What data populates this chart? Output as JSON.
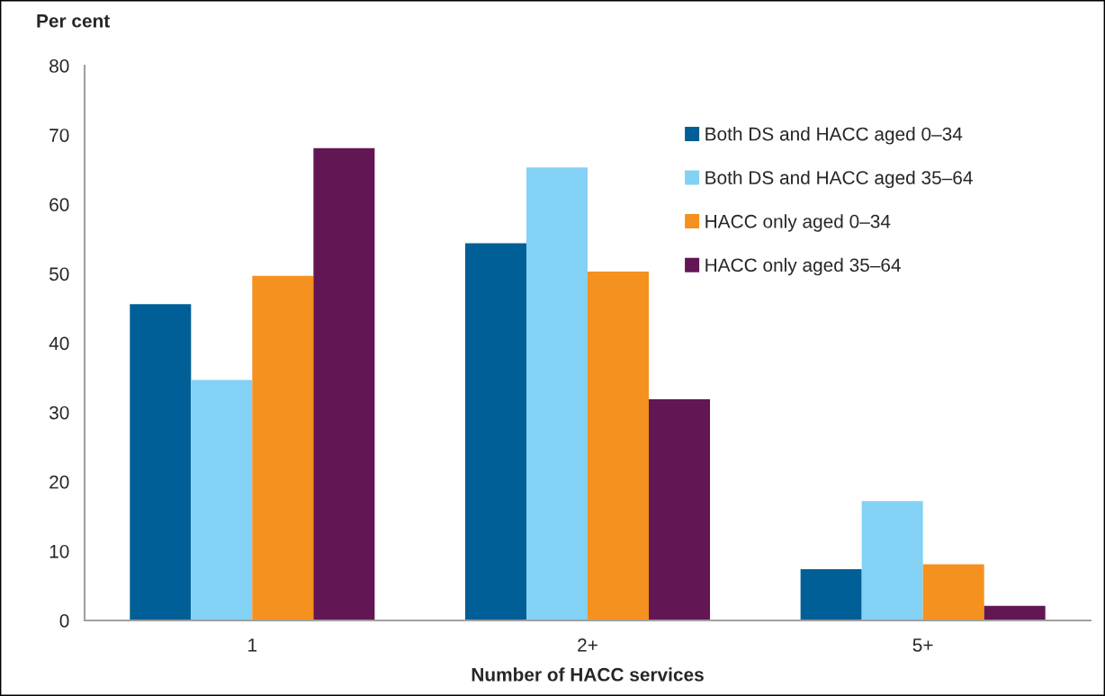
{
  "chart_data": {
    "type": "bar",
    "ylabel": "Per cent",
    "xlabel": "Number of HACC services",
    "categories": [
      "1",
      "2+",
      "5+"
    ],
    "series": [
      {
        "name": "Both DS and HACC aged 0–34",
        "color": "#005f96",
        "values": [
          45.6,
          54.4,
          7.4
        ]
      },
      {
        "name": "Both DS and HACC aged 35–64",
        "color": "#83d1f5",
        "values": [
          34.7,
          65.3,
          17.2
        ]
      },
      {
        "name": "HACC only aged 0–34",
        "color": "#f5911e",
        "values": [
          49.7,
          50.3,
          8.1
        ]
      },
      {
        "name": "HACC only aged 35–64",
        "color": "#621653",
        "values": [
          68.1,
          31.9,
          2.1
        ]
      }
    ],
    "ylim": [
      0,
      80
    ],
    "yticks": [
      0,
      10,
      20,
      30,
      40,
      50,
      60,
      70,
      80
    ],
    "grid": false,
    "legend": "top right"
  }
}
